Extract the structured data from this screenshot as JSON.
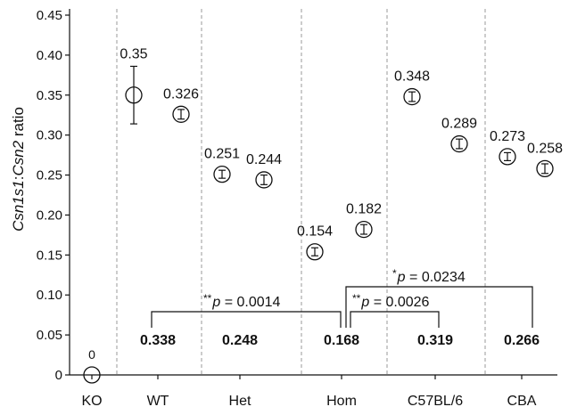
{
  "chart_data": {
    "type": "scatter",
    "ylabel": {
      "pre": "Csn1s1",
      "sep": ":",
      "post": "Csn2",
      "suffix": " ratio"
    },
    "ylim": [
      0,
      0.45
    ],
    "yticks": [
      "0",
      "0.05",
      "0.10",
      "0.15",
      "0.20",
      "0.25",
      "0.30",
      "0.35",
      "0.40",
      "0.45"
    ],
    "xticks": [
      "KO",
      "WT",
      "Het",
      "Hom",
      "C57BL/6",
      "CBA"
    ],
    "grid": "dashed vertical separators between groups",
    "points": [
      {
        "group": "KO",
        "value": 0,
        "label": "0",
        "err": 0
      },
      {
        "group": "WT",
        "value": 0.35,
        "label": "0.35",
        "err": 0.036
      },
      {
        "group": "WT",
        "value": 0.326,
        "label": "0.326",
        "err": 0.006
      },
      {
        "group": "Het",
        "value": 0.251,
        "label": "0.251",
        "err": 0.005
      },
      {
        "group": "Het",
        "value": 0.244,
        "label": "0.244",
        "err": 0.006
      },
      {
        "group": "Hom",
        "value": 0.154,
        "label": "0.154",
        "err": 0.005
      },
      {
        "group": "Hom",
        "value": 0.182,
        "label": "0.182",
        "err": 0.006
      },
      {
        "group": "C57BL/6",
        "value": 0.348,
        "label": "0.348",
        "err": 0.006
      },
      {
        "group": "C57BL/6",
        "value": 0.289,
        "label": "0.289",
        "err": 0.006
      },
      {
        "group": "CBA",
        "value": 0.273,
        "label": "0.273",
        "err": 0.005
      },
      {
        "group": "CBA",
        "value": 0.258,
        "label": "0.258",
        "err": 0.006
      }
    ],
    "group_means": [
      {
        "group": "WT",
        "value": "0.338"
      },
      {
        "group": "Het",
        "value": "0.248"
      },
      {
        "group": "Hom",
        "value": "0.168"
      },
      {
        "group": "C57BL/6",
        "value": "0.319"
      },
      {
        "group": "CBA",
        "value": "0.266"
      }
    ],
    "comparisons": [
      {
        "from": "WT",
        "to": "Hom",
        "stars": "**",
        "text": "p = 0.0014"
      },
      {
        "from": "Hom",
        "to": "C57BL/6",
        "stars": "**",
        "text": "p = 0.0026"
      },
      {
        "from": "Hom",
        "to": "CBA",
        "stars": "*",
        "text": "p = 0.0234"
      }
    ]
  }
}
